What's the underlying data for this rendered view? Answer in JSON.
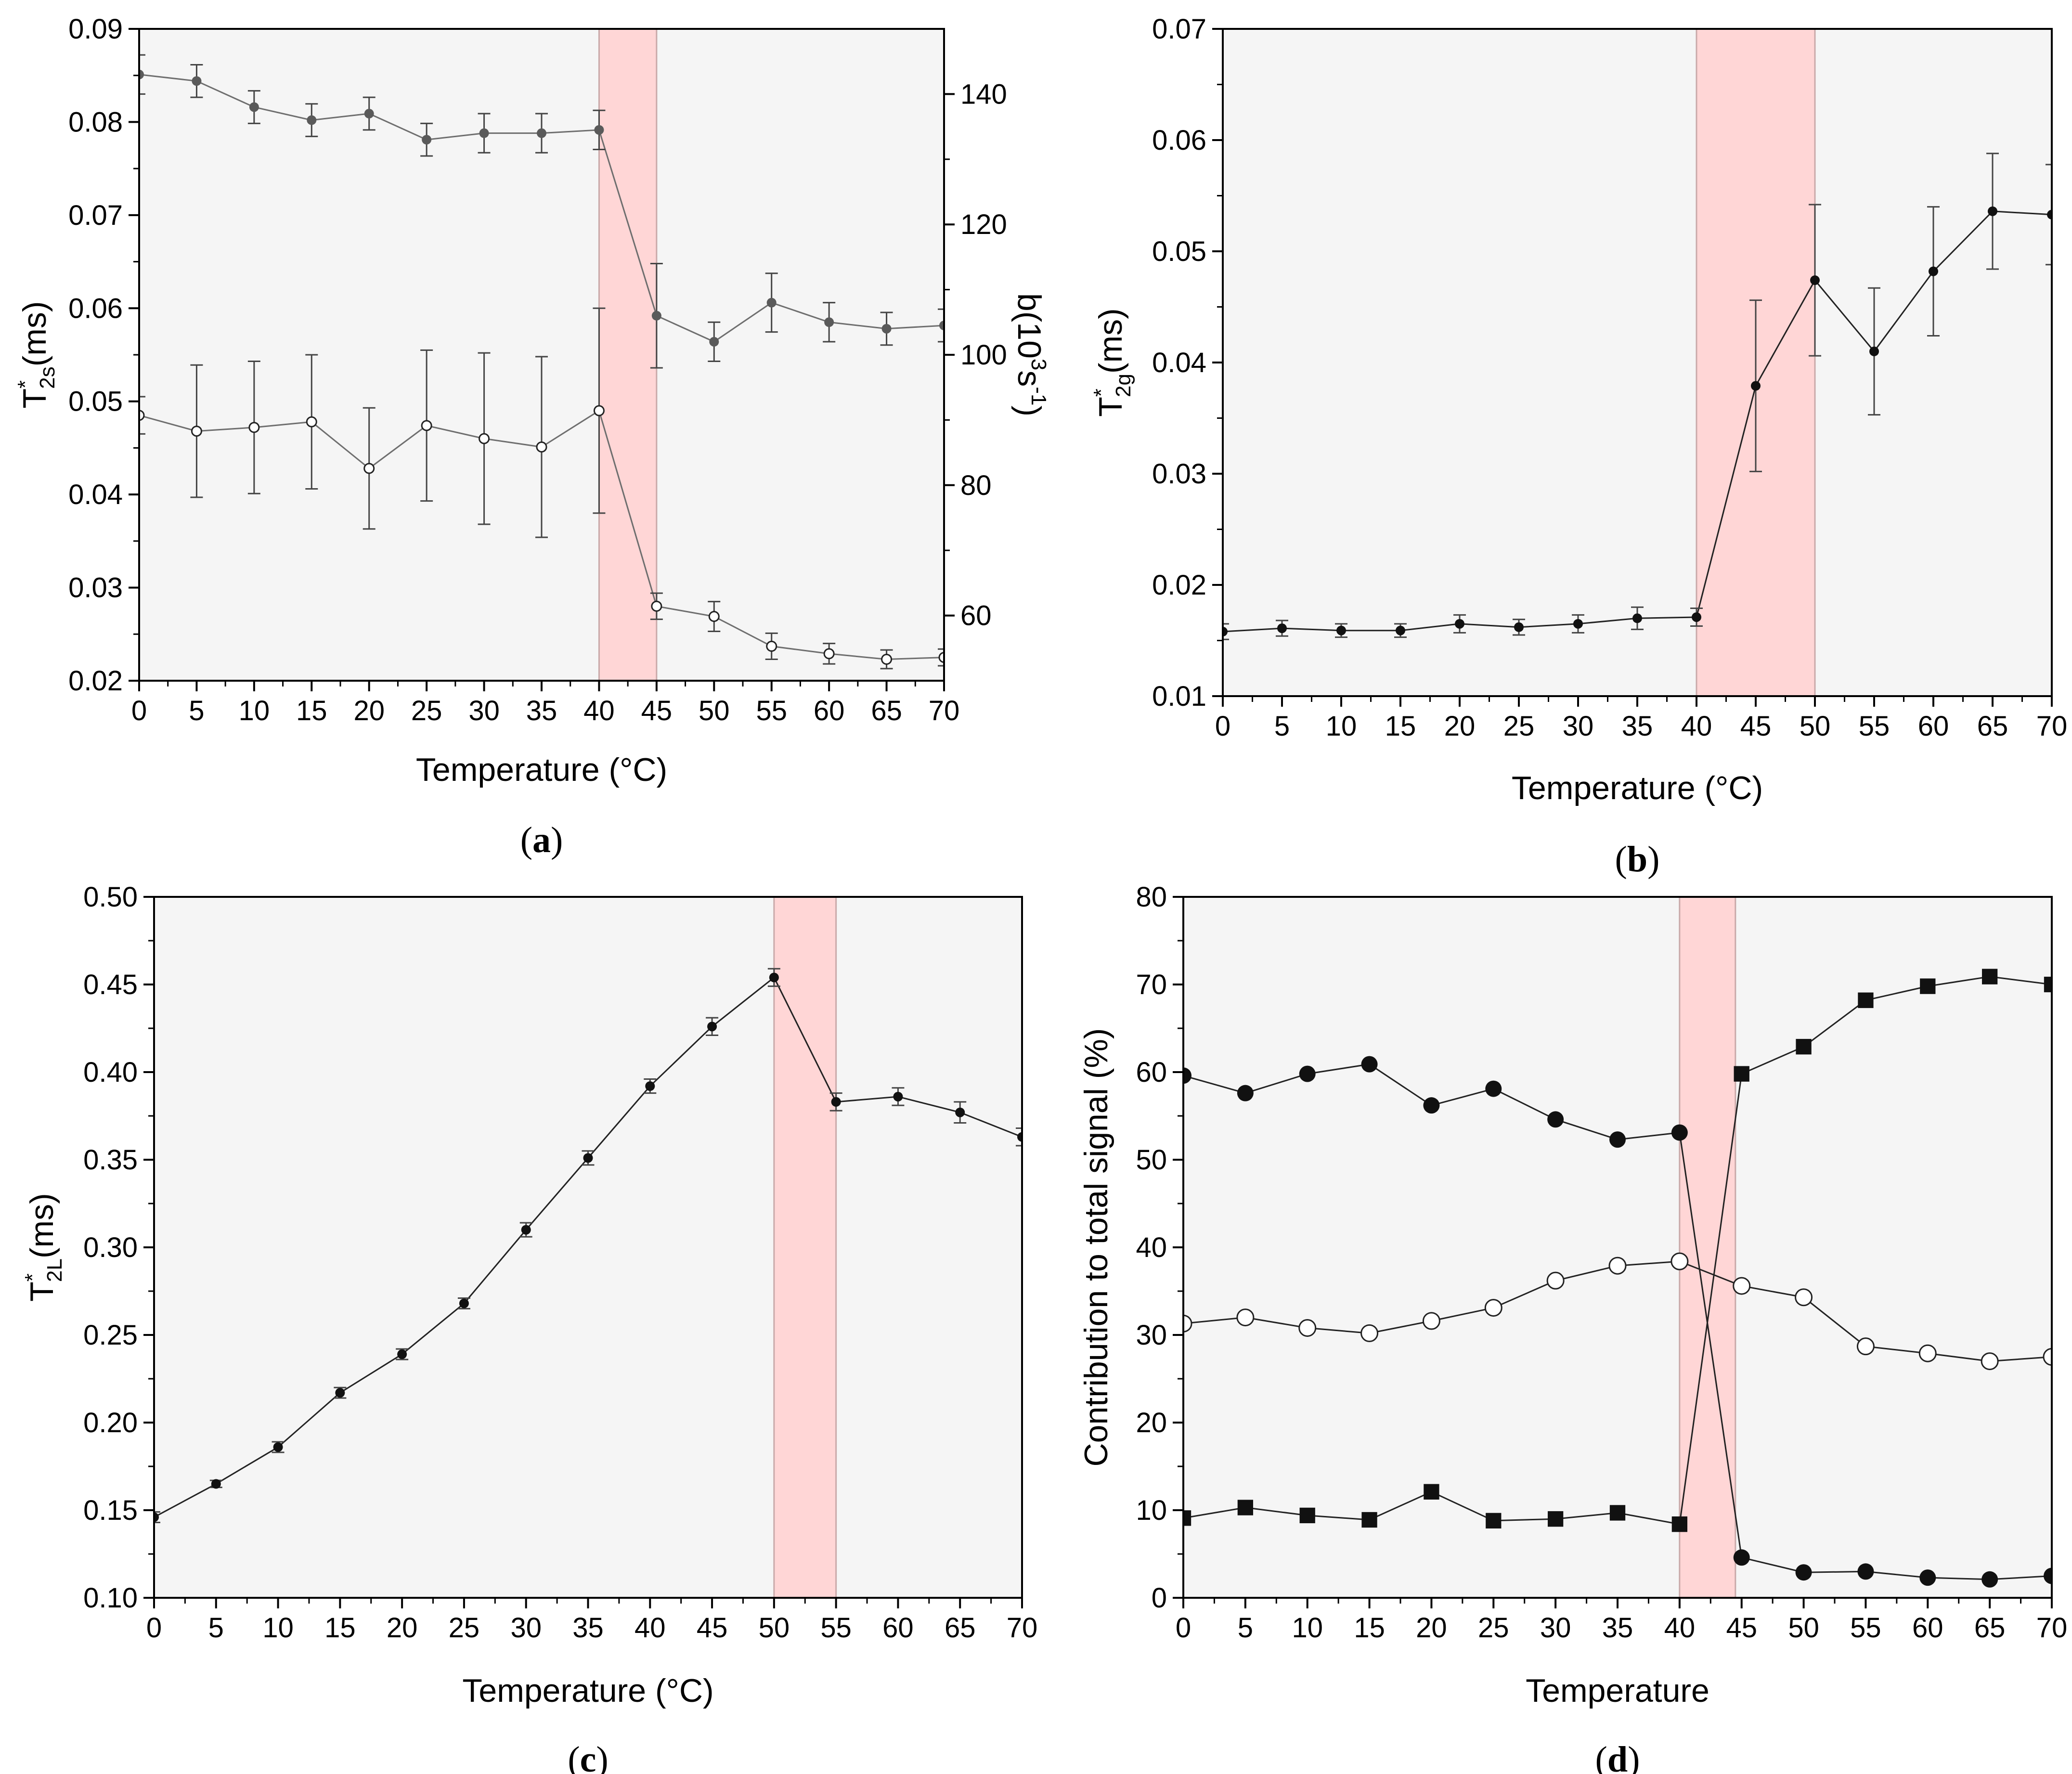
{
  "chart_data": [
    {
      "panel": "a",
      "caption": "(a)",
      "caption_letter": "a",
      "type": "line",
      "xlabel": "Temperature (°C)",
      "ylabel": {
        "main": "T",
        "sup": "*",
        "sub": "2s",
        "rest": "(ms)"
      },
      "y2label": {
        "pre": "b(10",
        "sup1": "3",
        "mid": "s",
        "sup2": "-1",
        "post": ")"
      },
      "xlim": [
        0,
        70
      ],
      "ylim": [
        0.02,
        0.09
      ],
      "y2lim": [
        50,
        150
      ],
      "xticks": [
        "0",
        "5",
        "10",
        "15",
        "20",
        "25",
        "30",
        "35",
        "40",
        "45",
        "50",
        "55",
        "60",
        "65",
        "70"
      ],
      "yticks": [
        "0.02",
        "0.03",
        "0.04",
        "0.05",
        "0.06",
        "0.07",
        "0.08",
        "0.09"
      ],
      "y2ticks": [
        "60",
        "80",
        "100",
        "120",
        "140"
      ],
      "highlight": [
        40,
        45
      ],
      "series": [
        {
          "name": "T*2s",
          "axis": "left",
          "marker": "open-circle",
          "x": [
            0,
            5,
            10,
            15,
            20,
            25,
            30,
            35,
            40,
            45,
            50,
            55,
            60,
            65,
            70
          ],
          "values": [
            0.0485,
            0.0468,
            0.0472,
            0.0478,
            0.0428,
            0.0474,
            0.046,
            0.0451,
            0.049,
            0.028,
            0.0269,
            0.0237,
            0.0229,
            0.0223,
            0.0225
          ],
          "errors": [
            0.002,
            0.0071,
            0.0071,
            0.0072,
            0.0065,
            0.0081,
            0.0092,
            0.0097,
            0.011,
            0.0014,
            0.0016,
            0.0014,
            0.0011,
            0.001,
            0.0009
          ]
        },
        {
          "name": "b",
          "axis": "right",
          "marker": "filled-circle",
          "x": [
            0,
            5,
            10,
            15,
            20,
            25,
            30,
            35,
            40,
            45,
            50,
            55,
            60,
            65,
            70
          ],
          "values": [
            143,
            142,
            138,
            136,
            137,
            133,
            134,
            134,
            134.5,
            106,
            102,
            108,
            105,
            104,
            104.5
          ],
          "errors": [
            3,
            2.5,
            2.5,
            2.5,
            2.5,
            2.5,
            3,
            3,
            3,
            8,
            3,
            4.5,
            3,
            2.5,
            2.5
          ]
        }
      ]
    },
    {
      "panel": "b",
      "caption": "(b)",
      "caption_letter": "b",
      "type": "line",
      "xlabel": "Temperature (°C)",
      "ylabel": {
        "main": "T",
        "sup": "*",
        "sub": "2g",
        "rest": "(ms)"
      },
      "xlim": [
        0,
        70
      ],
      "ylim": [
        0.01,
        0.07
      ],
      "xticks": [
        "0",
        "5",
        "10",
        "15",
        "20",
        "25",
        "30",
        "35",
        "40",
        "45",
        "50",
        "55",
        "60",
        "65",
        "70"
      ],
      "yticks": [
        "0.01",
        "0.02",
        "0.03",
        "0.04",
        "0.05",
        "0.06",
        "0.07"
      ],
      "highlight": [
        40,
        50
      ],
      "series": [
        {
          "name": "T*2g",
          "marker": "filled-circle",
          "x": [
            0,
            5,
            10,
            15,
            20,
            25,
            30,
            35,
            40,
            45,
            50,
            55,
            60,
            65,
            70
          ],
          "values": [
            0.0158,
            0.0161,
            0.0159,
            0.0159,
            0.0165,
            0.0162,
            0.0165,
            0.017,
            0.0171,
            0.0379,
            0.0474,
            0.041,
            0.0482,
            0.0536,
            0.0533
          ],
          "errors": [
            0.0007,
            0.0007,
            0.0006,
            0.0006,
            0.0008,
            0.0007,
            0.0008,
            0.001,
            0.0008,
            0.0077,
            0.0068,
            0.0057,
            0.0058,
            0.0052,
            0.0045
          ]
        }
      ]
    },
    {
      "panel": "c",
      "caption": "(c)",
      "caption_letter": "c",
      "type": "line",
      "xlabel": "Temperature (°C)",
      "ylabel": {
        "main": "T",
        "sup": "*",
        "sub": "2L",
        "rest": "(ms)"
      },
      "xlim": [
        0,
        70
      ],
      "ylim": [
        0.1,
        0.5
      ],
      "xticks": [
        "0",
        "5",
        "10",
        "15",
        "20",
        "25",
        "30",
        "35",
        "40",
        "45",
        "50",
        "55",
        "60",
        "65",
        "70"
      ],
      "yticks": [
        "0.10",
        "0.15",
        "0.20",
        "0.25",
        "0.30",
        "0.35",
        "0.40",
        "0.45",
        "0.50"
      ],
      "highlight": [
        50,
        55
      ],
      "series": [
        {
          "name": "T*2L",
          "marker": "filled-circle",
          "x": [
            0,
            5,
            10,
            15,
            20,
            25,
            30,
            35,
            40,
            45,
            50,
            55,
            60,
            65,
            70
          ],
          "values": [
            0.146,
            0.165,
            0.186,
            0.217,
            0.239,
            0.268,
            0.31,
            0.351,
            0.392,
            0.426,
            0.454,
            0.383,
            0.386,
            0.377,
            0.363
          ],
          "errors": [
            0.003,
            0.002,
            0.003,
            0.003,
            0.003,
            0.003,
            0.004,
            0.004,
            0.004,
            0.005,
            0.005,
            0.005,
            0.005,
            0.006,
            0.005
          ]
        }
      ]
    },
    {
      "panel": "d",
      "caption": "(d)",
      "caption_letter": "d",
      "type": "line",
      "xlabel": "Temperature",
      "ylabel": "Contribution to total signal (%)",
      "xlim": [
        0,
        70
      ],
      "ylim": [
        0,
        80
      ],
      "xticks": [
        "0",
        "5",
        "10",
        "15",
        "20",
        "25",
        "30",
        "35",
        "40",
        "45",
        "50",
        "55",
        "60",
        "65",
        "70"
      ],
      "yticks": [
        "0",
        "10",
        "20",
        "30",
        "40",
        "50",
        "60",
        "70",
        "80"
      ],
      "highlight": [
        40,
        44.5
      ],
      "series": [
        {
          "name": "filled circles",
          "marker": "filled-circle",
          "x": [
            0,
            5,
            10,
            15,
            20,
            25,
            30,
            35,
            40,
            45,
            50,
            55,
            60,
            65,
            70
          ],
          "values": [
            59.6,
            57.6,
            59.8,
            60.9,
            56.2,
            58.1,
            54.6,
            52.3,
            53.1,
            4.6,
            2.9,
            3.0,
            2.3,
            2.1,
            2.5
          ]
        },
        {
          "name": "open circles",
          "marker": "open-circle",
          "x": [
            0,
            5,
            10,
            15,
            20,
            25,
            30,
            35,
            40,
            45,
            50,
            55,
            60,
            65,
            70
          ],
          "values": [
            31.3,
            32.0,
            30.8,
            30.2,
            31.6,
            33.1,
            36.2,
            37.9,
            38.4,
            35.6,
            34.3,
            28.7,
            27.9,
            27.0,
            27.5
          ]
        },
        {
          "name": "filled squares",
          "marker": "filled-square",
          "x": [
            0,
            5,
            10,
            15,
            20,
            25,
            30,
            35,
            40,
            45,
            50,
            55,
            60,
            65,
            70
          ],
          "values": [
            9.1,
            10.3,
            9.4,
            8.9,
            12.1,
            8.8,
            9.0,
            9.7,
            8.4,
            59.8,
            62.9,
            68.2,
            69.8,
            70.9,
            70.0
          ]
        }
      ]
    }
  ]
}
